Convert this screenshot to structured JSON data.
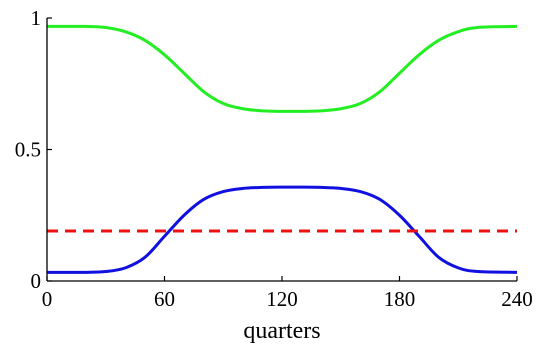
{
  "chart_data": {
    "type": "line",
    "title": "",
    "xlabel": "quarters",
    "ylabel": "",
    "xlim": [
      0,
      240
    ],
    "ylim": [
      0,
      1
    ],
    "xticks": [
      0,
      60,
      120,
      180,
      240
    ],
    "xtick_labels": [
      "0",
      "60",
      "120",
      "180",
      "240"
    ],
    "yticks": [
      0,
      0.5,
      1
    ],
    "ytick_labels": [
      "0",
      "0.5",
      "1"
    ],
    "grid": false,
    "legend": "none",
    "series": [
      {
        "color": "#22ee22",
        "style": "solid",
        "x": [
          0,
          20,
          30,
          40,
          50,
          60,
          70,
          80,
          90,
          100,
          110,
          120,
          130,
          140,
          150,
          160,
          170,
          180,
          190,
          200,
          210,
          220,
          240
        ],
        "y": [
          0.968,
          0.968,
          0.964,
          0.948,
          0.915,
          0.86,
          0.79,
          0.72,
          0.675,
          0.655,
          0.647,
          0.645,
          0.645,
          0.647,
          0.655,
          0.675,
          0.72,
          0.79,
          0.86,
          0.915,
          0.948,
          0.964,
          0.968
        ]
      },
      {
        "color": "#1010e0",
        "style": "solid",
        "x": [
          0,
          20,
          30,
          40,
          50,
          60,
          70,
          80,
          90,
          100,
          110,
          120,
          130,
          140,
          150,
          160,
          170,
          180,
          190,
          200,
          210,
          220,
          240
        ],
        "y": [
          0.033,
          0.033,
          0.036,
          0.05,
          0.09,
          0.17,
          0.25,
          0.31,
          0.34,
          0.352,
          0.356,
          0.357,
          0.357,
          0.356,
          0.352,
          0.34,
          0.31,
          0.25,
          0.17,
          0.09,
          0.05,
          0.036,
          0.033
        ]
      },
      {
        "color": "#ee1111",
        "style": "dashed",
        "x": [
          0,
          240
        ],
        "y": [
          0.19,
          0.19
        ]
      }
    ]
  }
}
